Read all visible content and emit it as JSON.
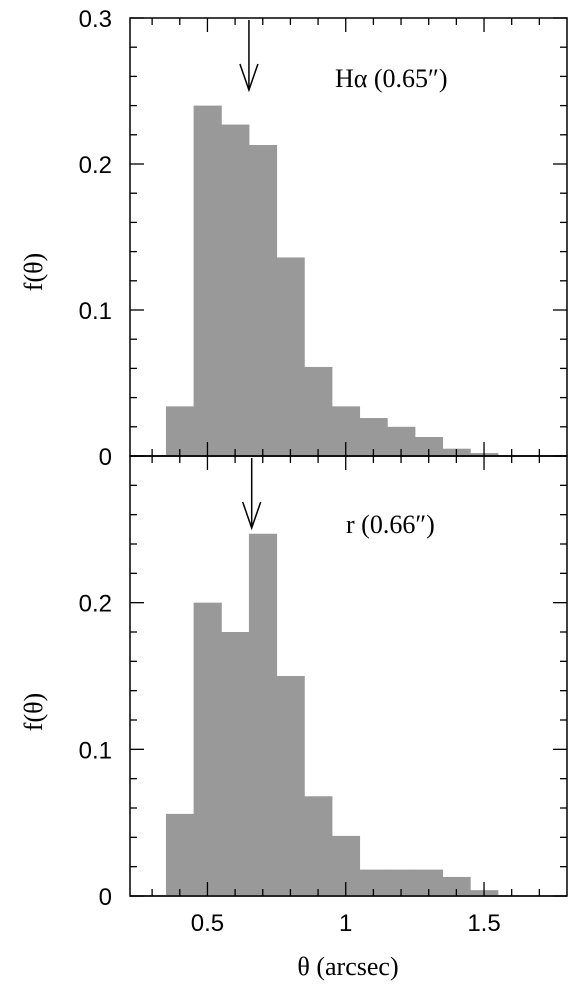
{
  "chart_data": [
    {
      "type": "bar",
      "panel": "top",
      "annotation": "Hα  (0.65″)",
      "marker_x": 0.65,
      "ylabel": "f(θ)",
      "xlim": [
        0.22,
        1.8
      ],
      "ylim": [
        0,
        0.3
      ],
      "yticks": [
        0,
        0.1,
        0.2,
        0.3
      ],
      "ytick_labels": [
        "0",
        "0.1",
        "0.2",
        "0.3"
      ],
      "bin_width": 0.1,
      "x": [
        0.35,
        0.45,
        0.55,
        0.65,
        0.75,
        0.85,
        0.95,
        1.05,
        1.15,
        1.25,
        1.35,
        1.45
      ],
      "values": [
        0.034,
        0.24,
        0.227,
        0.213,
        0.136,
        0.061,
        0.034,
        0.026,
        0.02,
        0.013,
        0.005,
        0.002
      ]
    },
    {
      "type": "bar",
      "panel": "bottom",
      "annotation": "r  (0.66″)",
      "marker_x": 0.66,
      "ylabel": "f(θ)",
      "xlabel": "θ   (arcsec)",
      "xlim": [
        0.22,
        1.8
      ],
      "ylim": [
        0,
        0.3
      ],
      "yticks": [
        0,
        0.1,
        0.2
      ],
      "ytick_labels": [
        "0",
        "0.1",
        "0.2"
      ],
      "xticks": [
        0.5,
        1,
        1.5
      ],
      "xtick_labels": [
        "0.5",
        "1",
        "1.5"
      ],
      "bin_width": 0.1,
      "x": [
        0.35,
        0.45,
        0.55,
        0.65,
        0.75,
        0.85,
        0.95,
        1.05,
        1.15,
        1.25,
        1.35,
        1.45
      ],
      "values": [
        0.056,
        0.2,
        0.18,
        0.247,
        0.15,
        0.068,
        0.041,
        0.018,
        0.018,
        0.018,
        0.013,
        0.004
      ]
    }
  ],
  "colors": {
    "bar_fill": "#999999",
    "axis": "#000000",
    "background": "#ffffff"
  }
}
